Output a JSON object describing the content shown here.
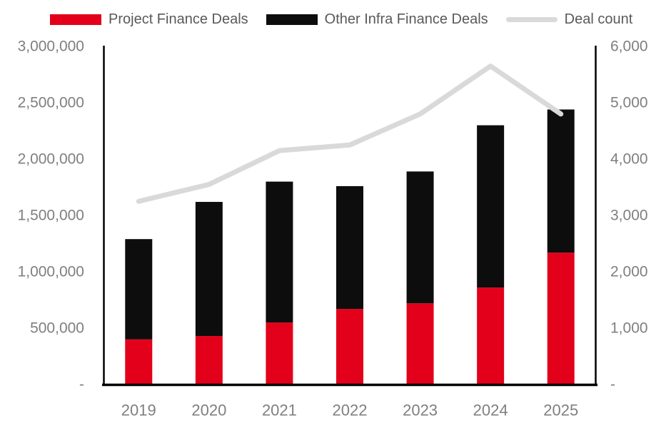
{
  "chart_data": {
    "type": "bar",
    "subtype": "stacked-bar-with-line",
    "title": "",
    "categories": [
      "2019",
      "2020",
      "2021",
      "2022",
      "2023",
      "2024",
      "2025"
    ],
    "series": [
      {
        "name": "Project Finance Deals",
        "type": "bar",
        "axis": "left",
        "color": "#e2001a",
        "values": [
          400000,
          430000,
          550000,
          670000,
          720000,
          860000,
          1170000
        ]
      },
      {
        "name": "Other Infra Finance Deals",
        "type": "bar",
        "axis": "left",
        "color": "#0d0d0d",
        "values": [
          890000,
          1190000,
          1250000,
          1090000,
          1170000,
          1440000,
          1270000
        ]
      },
      {
        "name": "Deal count",
        "type": "line",
        "axis": "right",
        "color": "#d9d9d9",
        "values": [
          3250,
          3550,
          4150,
          4250,
          4800,
          5650,
          4800
        ]
      }
    ],
    "stacked_totals": [
      1290000,
      1620000,
      1800000,
      1760000,
      1890000,
      2300000,
      2440000
    ],
    "left_axis": {
      "min": 0,
      "max": 3000000,
      "step": 500000,
      "tick_labels": [
        "-",
        "500,000",
        "1,000,000",
        "1,500,000",
        "2,000,000",
        "2,500,000",
        "3,000,000"
      ]
    },
    "right_axis": {
      "min": 0,
      "max": 6000,
      "step": 1000,
      "tick_labels": [
        "-",
        "1,000",
        "2,000",
        "3,000",
        "4,000",
        "5,000",
        "6,000"
      ]
    },
    "grid": false,
    "legend_position": "top",
    "axis_line_color": "#000000",
    "tick_label_color": "#7f7f7f"
  }
}
